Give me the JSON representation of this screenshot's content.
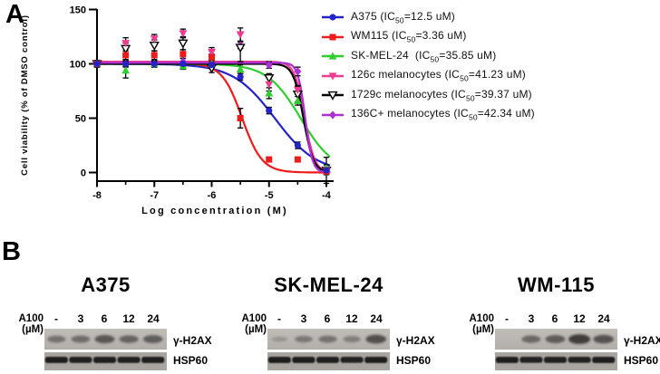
{
  "panelA": {
    "label": "A"
  },
  "chart_data": {
    "type": "line-scatter",
    "title": "",
    "xlabel": "Log concentration (M)",
    "ylabel": "Cell viability (% of DMSO control)",
    "xlim": [
      -8,
      -4
    ],
    "ylim": [
      0,
      150
    ],
    "x_ticks": [
      -8,
      -7,
      -6,
      -5,
      -4
    ],
    "x_minor_ticks": [
      -7.5,
      -6.5,
      -5.5,
      -4.5
    ],
    "y_ticks": [
      0,
      50,
      100,
      150
    ],
    "grid": false,
    "legend_position": "right",
    "x": [
      -8,
      -7.5,
      -7,
      -6.5,
      -6,
      -5.5,
      -5,
      -4.5,
      -4
    ],
    "series": [
      {
        "name": "A375",
        "marker": "circle",
        "color": "#2323C8",
        "values": [
          100,
          100,
          100,
          100,
          99,
          88,
          57,
          25,
          2
        ],
        "err": [
          2,
          2,
          2,
          2,
          2,
          3,
          3,
          3,
          12
        ],
        "fit": {
          "top": 100,
          "logIC50": -4.9,
          "hill": 1.2
        },
        "legend": {
          "pre": "A375 (IC",
          "sub": "50",
          "post": "=12.5 uM)"
        }
      },
      {
        "name": "WM115",
        "marker": "square",
        "color": "#EE1B1B",
        "values": [
          100,
          108,
          108,
          109,
          106,
          50,
          12,
          12,
          1
        ],
        "err": [
          3,
          4,
          4,
          4,
          3,
          9,
          2,
          2,
          2
        ],
        "fit": {
          "top": 100.5,
          "logIC50": -5.47,
          "hill": 2.5
        },
        "legend": {
          "pre": "WM115 (IC",
          "sub": "50",
          "post": "=3.36 uM)"
        }
      },
      {
        "name": "SK-MEL-24",
        "marker": "triangle-up",
        "color": "#2FCE2F",
        "values": [
          100,
          94,
          100,
          98,
          100,
          95,
          73,
          66,
          4
        ],
        "err": [
          2,
          7,
          3,
          3,
          3,
          4,
          5,
          4,
          3
        ],
        "fit": {
          "top": 100,
          "logIC50": -4.45,
          "hill": 1.5
        },
        "legend": {
          "pre": "SK-MEL-24  (IC",
          "sub": "50",
          "post": "=35.85 uM)"
        }
      },
      {
        "name": "126c melanocytes",
        "marker": "triangle-down",
        "color": "#EF3A8F",
        "values": [
          100,
          119,
          123,
          128,
          111,
          127,
          81,
          76,
          2
        ],
        "err": [
          3,
          5,
          4,
          4,
          4,
          6,
          6,
          4,
          3
        ],
        "fit": {
          "top": 102,
          "logIC50": -4.38,
          "hill": 5
        },
        "legend": {
          "pre": "126c melanocytes (IC",
          "sub": "50",
          "post": "=41.23 uM)"
        }
      },
      {
        "name": "1729c melanocytes",
        "marker": "triangle-down-open",
        "color": "#000000",
        "values": [
          100,
          114,
          117,
          119,
          96,
          115,
          87,
          72,
          2
        ],
        "err": [
          3,
          5,
          5,
          6,
          4,
          13,
          4,
          7,
          3
        ],
        "fit": {
          "top": 100,
          "logIC50": -4.4,
          "hill": 5
        },
        "legend": {
          "pre": "1729c melanocytes (IC",
          "sub": "50",
          "post": "=39.37 uM)"
        }
      },
      {
        "name": "136C+ melanocytes",
        "marker": "diamond",
        "color": "#AC30D2",
        "values": [
          100,
          100,
          100,
          102,
          108,
          117,
          99,
          93,
          1
        ],
        "err": [
          2,
          3,
          3,
          3,
          4,
          3,
          3,
          4,
          3
        ],
        "fit": {
          "top": 101,
          "logIC50": -4.37,
          "hill": 7
        },
        "legend": {
          "pre": "136C+ melanocytes (IC",
          "sub": "50",
          "post": "=42.34 uM)"
        }
      }
    ]
  },
  "panelB": {
    "label": "B",
    "dose_label": "A100 (µM)",
    "doses": [
      "-",
      "3",
      "6",
      "12",
      "24"
    ],
    "band_labels": [
      "γ-H2AX",
      "HSP60"
    ],
    "groups": [
      {
        "title": "A375",
        "h2ax": [
          0.45,
          0.5,
          0.72,
          0.6,
          0.66
        ],
        "hsp60": [
          0.95,
          0.85,
          0.9,
          0.85,
          0.92
        ]
      },
      {
        "title": "SK-MEL-24",
        "h2ax": [
          0.08,
          0.38,
          0.45,
          0.32,
          0.8
        ],
        "hsp60": [
          0.95,
          0.95,
          0.9,
          0.82,
          0.95
        ]
      },
      {
        "title": "WM-115",
        "h2ax": [
          0.04,
          0.55,
          0.68,
          1.0,
          0.78
        ],
        "hsp60": [
          0.95,
          0.8,
          0.85,
          0.8,
          0.95
        ]
      }
    ],
    "colors": {
      "strip_h2ax_top": "#c1bdb8",
      "strip_h2ax_bottom": "#b2aeaa",
      "strip_hsp60": "#a9a5a1",
      "band": "#1d1d1d"
    }
  }
}
